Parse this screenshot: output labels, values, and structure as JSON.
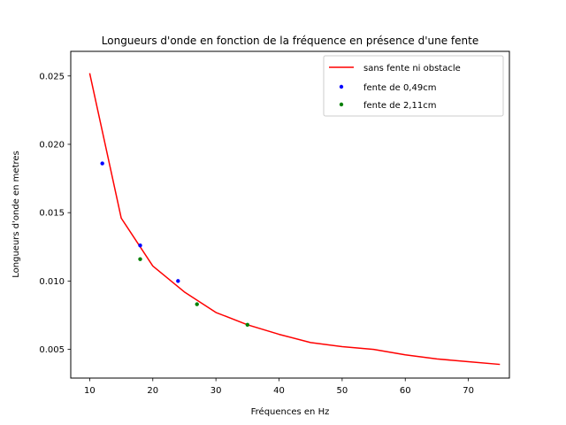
{
  "chart_data": {
    "type": "line",
    "title": "Longueurs d'onde en fonction de la fréquence en présence d'une fente",
    "xlabel": "Fréquences en Hz",
    "ylabel": "Longueurs d'onde en metres",
    "xlim": [
      7,
      76.5
    ],
    "ylim": [
      0.0029,
      0.0268
    ],
    "xticks": [
      10,
      20,
      30,
      40,
      50,
      60,
      70
    ],
    "yticks": [
      0.005,
      0.01,
      0.015,
      0.02,
      0.025
    ],
    "ytick_labels": [
      "0.005",
      "0.010",
      "0.015",
      "0.020",
      "0.025"
    ],
    "grid": false,
    "legend_position": "top-right",
    "series": [
      {
        "name": "sans fente ni obstacle",
        "style": "line",
        "color": "#ff0000",
        "x": [
          10,
          15,
          20,
          25,
          30,
          35,
          40,
          45,
          50,
          55,
          60,
          65,
          70,
          75
        ],
        "y": [
          0.0252,
          0.0146,
          0.0111,
          0.0092,
          0.0077,
          0.0068,
          0.0061,
          0.0055,
          0.0052,
          0.005,
          0.0046,
          0.0043,
          0.0041,
          0.0039
        ]
      },
      {
        "name": "fente de 0,49cm",
        "style": "marker",
        "color": "#0000ff",
        "x": [
          12,
          18,
          24
        ],
        "y": [
          0.0186,
          0.0126,
          0.01
        ]
      },
      {
        "name": "fente de 2,11cm",
        "style": "marker",
        "color": "#008000",
        "x": [
          18,
          27,
          35
        ],
        "y": [
          0.0116,
          0.0083,
          0.0068
        ]
      }
    ]
  }
}
